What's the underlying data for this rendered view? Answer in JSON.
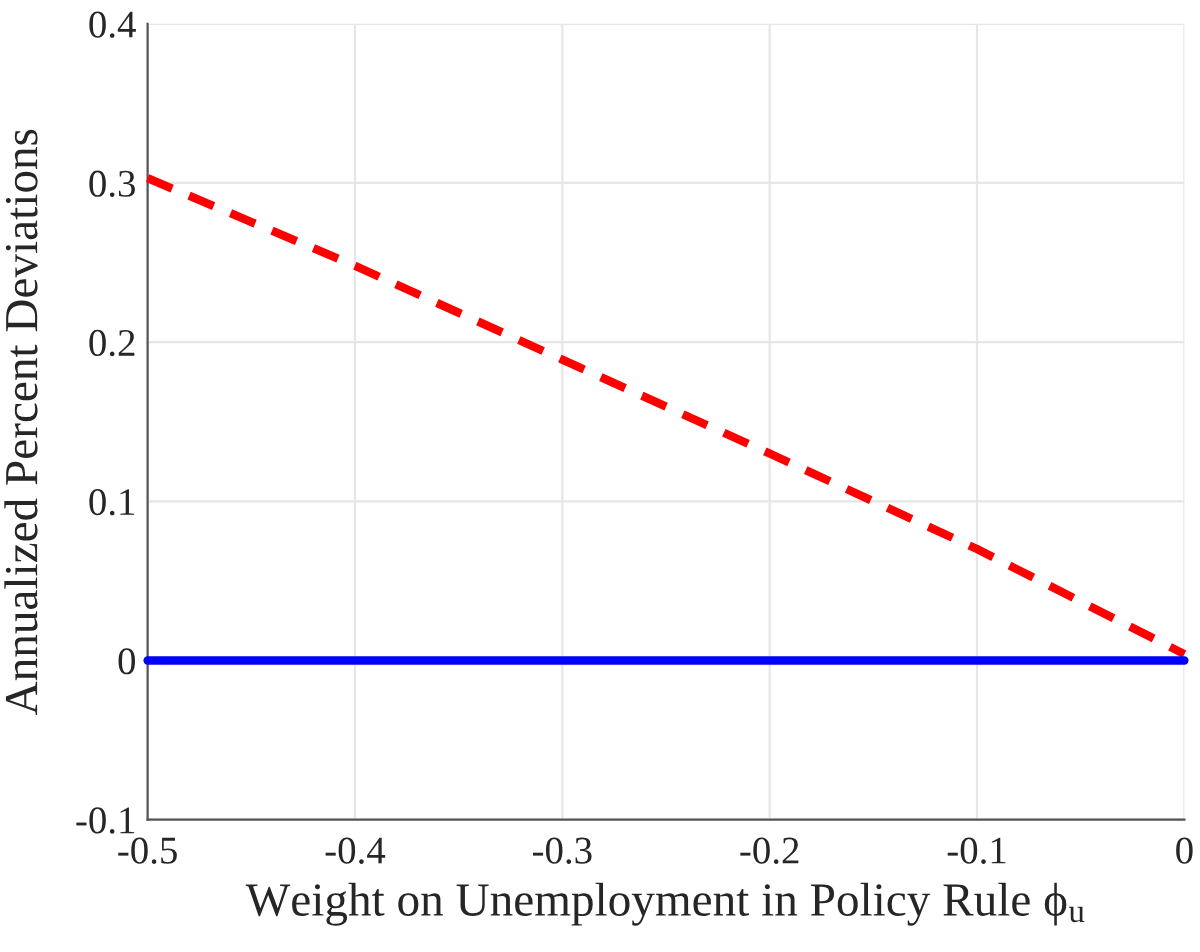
{
  "chart_data": {
    "type": "line",
    "xlabel": "Weight on Unemployment in Policy Rule ϕ$_{u}$",
    "ylabel": "Annualized Percent Deviations",
    "series": [
      {
        "color": "#ff0000",
        "line_style": "dashed",
        "x": [
          -0.5,
          -0.4,
          -0.3,
          -0.2,
          -0.1,
          0
        ],
        "values": [
          0.303,
          0.248,
          0.189,
          0.13,
          0.07,
          0.004
        ]
      },
      {
        "color": "#0000ff",
        "line_style": "solid",
        "x": [
          -0.5,
          0
        ],
        "values": [
          0,
          0
        ]
      }
    ],
    "xlim": [
      -0.5,
      0
    ],
    "xticks": [
      -0.5,
      -0.4,
      -0.3,
      -0.2,
      -0.1,
      0
    ],
    "ylim": [
      -0.1,
      0.4
    ],
    "yticks": [
      -0.1,
      0,
      0.1,
      0.2,
      0.3,
      0.4
    ],
    "grid": true,
    "marker": "none"
  }
}
